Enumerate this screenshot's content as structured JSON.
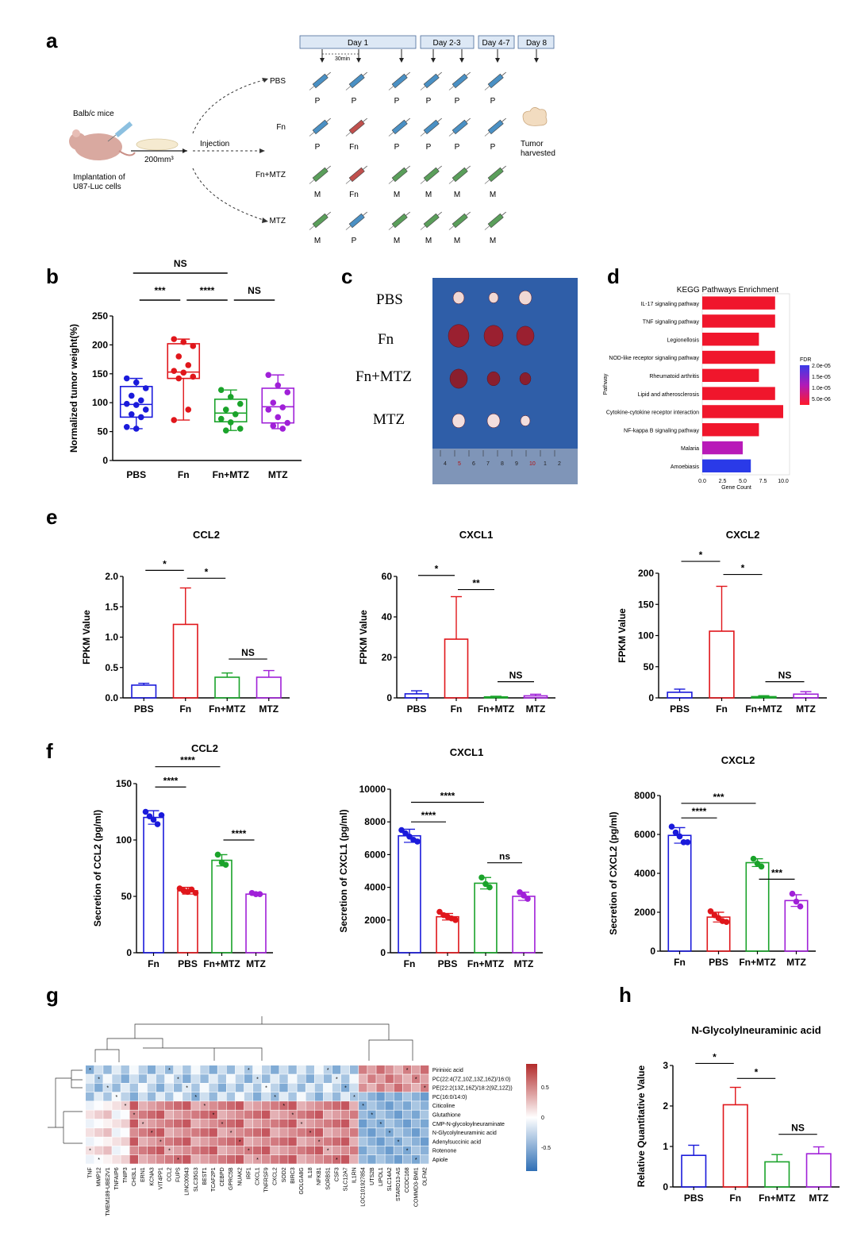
{
  "panel_labels": {
    "a": "a",
    "b": "b",
    "c": "c",
    "d": "d",
    "e": "e",
    "f": "f",
    "g": "g",
    "h": "h"
  },
  "panel_a": {
    "mouse_label": "Balb/c mice",
    "implant_line1": "Implantation of",
    "implant_line2": "U87-Luc cells",
    "volume": "200mm³",
    "injection": "Injection",
    "interval": "30min",
    "days": [
      "Day 1",
      "Day 2-3",
      "Day 4-7",
      "Day 8"
    ],
    "groups": [
      {
        "name": "PBS",
        "marks": [
          "P",
          "P",
          "P",
          "P",
          "P",
          "P"
        ],
        "colors": [
          "#4a90c4",
          "#4a90c4",
          "#4a90c4",
          "#4a90c4",
          "#4a90c4",
          "#4a90c4"
        ]
      },
      {
        "name": "Fn",
        "marks": [
          "P",
          "Fn",
          "P",
          "P",
          "P",
          "P"
        ],
        "colors": [
          "#4a90c4",
          "#c0504d",
          "#4a90c4",
          "#4a90c4",
          "#4a90c4",
          "#4a90c4"
        ]
      },
      {
        "name": "Fn+MTZ",
        "marks": [
          "M",
          "Fn",
          "M",
          "M",
          "M",
          "M"
        ],
        "colors": [
          "#5a9e5a",
          "#c0504d",
          "#5a9e5a",
          "#5a9e5a",
          "#5a9e5a",
          "#5a9e5a"
        ]
      },
      {
        "name": "MTZ",
        "marks": [
          "M",
          "P",
          "M",
          "M",
          "M",
          "M"
        ],
        "colors": [
          "#5a9e5a",
          "#4a90c4",
          "#5a9e5a",
          "#5a9e5a",
          "#5a9e5a",
          "#5a9e5a"
        ]
      }
    ],
    "tumor_line1": "Tumor",
    "tumor_line2": "harvested"
  },
  "panel_c": {
    "rows": [
      "PBS",
      "Fn",
      "Fn+MTZ",
      "MTZ"
    ],
    "ruler": [
      "4",
      "5",
      "6",
      "7",
      "8",
      "9",
      "10",
      "1",
      "2"
    ]
  },
  "chart_data": [
    {
      "id": "b",
      "type": "box",
      "title": "",
      "ylabel": "Normalized tumor weight(%)",
      "ylim": [
        0,
        250
      ],
      "yticks": [
        0,
        50,
        100,
        150,
        200,
        250
      ],
      "categories": [
        "PBS",
        "Fn",
        "Fn+MTZ",
        "MTZ"
      ],
      "colors": [
        "#1a1adb",
        "#e0161b",
        "#1aa32a",
        "#a020d8"
      ],
      "boxes": [
        {
          "min": 55,
          "q1": 75,
          "median": 97,
          "q3": 128,
          "max": 142,
          "points": [
            142,
            135,
            125,
            112,
            104,
            98,
            96,
            88,
            80,
            75,
            58,
            55
          ]
        },
        {
          "min": 70,
          "q1": 142,
          "median": 153,
          "q3": 202,
          "max": 210,
          "points": [
            210,
            205,
            198,
            180,
            165,
            155,
            152,
            145,
            142,
            88,
            70
          ]
        },
        {
          "min": 52,
          "q1": 67,
          "median": 82,
          "q3": 106,
          "max": 122,
          "points": [
            122,
            110,
            98,
            88,
            80,
            72,
            66,
            55,
            52
          ]
        },
        {
          "min": 55,
          "q1": 65,
          "median": 93,
          "q3": 125,
          "max": 148,
          "points": [
            148,
            130,
            118,
            100,
            92,
            88,
            75,
            65,
            60,
            55
          ]
        }
      ],
      "annotations": [
        {
          "from": 0,
          "to": 2,
          "label": "NS",
          "level": 3
        },
        {
          "from": 0,
          "to": 1,
          "label": "***",
          "level": 2
        },
        {
          "from": 1,
          "to": 2,
          "label": "****",
          "level": 2
        },
        {
          "from": 2,
          "to": 3,
          "label": "NS",
          "level": 2
        }
      ]
    },
    {
      "id": "d",
      "type": "bar",
      "title": "KEGG Pathways Enrichment",
      "xlabel": "Gene Count",
      "ylabel": "Pathway",
      "xlim": [
        0,
        10
      ],
      "xticks": [
        "0.0",
        "2.5",
        "5.0",
        "7.5",
        "10.0"
      ],
      "categories": [
        "IL-17 signaling pathway",
        "TNF signaling pathway",
        "Legionellosis",
        "NOD-like receptor signaling pathway",
        "Rheumatoid arthritis",
        "Lipid and atherosclerosis",
        "Cytokine-cytokine receptor interaction",
        "NF-kappa B signaling pathway",
        "Malaria",
        "Amoebiasis"
      ],
      "values": [
        9,
        9,
        7,
        9,
        7,
        9,
        10,
        7,
        5,
        6
      ],
      "colors": [
        "#f0162c",
        "#f0162c",
        "#f0162c",
        "#f0162c",
        "#f0162c",
        "#f0162c",
        "#f0162c",
        "#f0162c",
        "#b81ab8",
        "#2a3ae8"
      ],
      "legend_title": "FDR",
      "legend_ticks": [
        "2.0e-05",
        "1.5e-05",
        "1.0e-05",
        "5.0e-06"
      ]
    },
    {
      "id": "e1",
      "type": "bar",
      "style": "hollow",
      "title": "CCL2",
      "ylabel": "FPKM Value",
      "ylim": [
        0,
        2.0
      ],
      "yticks": [
        "0.0",
        "0.5",
        "1.0",
        "1.5",
        "2.0"
      ],
      "categories": [
        "PBS",
        "Fn",
        "Fn+MTZ",
        "MTZ"
      ],
      "values": [
        0.21,
        1.21,
        0.34,
        0.34
      ],
      "errors": [
        0.03,
        0.6,
        0.07,
        0.11
      ],
      "colors": [
        "#1a1adb",
        "#e0161b",
        "#1aa32a",
        "#a020d8"
      ],
      "annotations": [
        {
          "from": 0,
          "to": 1,
          "label": "*",
          "y": 2.1
        },
        {
          "from": 1,
          "to": 2,
          "label": "*",
          "y": 1.97
        },
        {
          "from": 2,
          "to": 3,
          "label": "NS",
          "y": 0.64
        }
      ]
    },
    {
      "id": "e2",
      "type": "bar",
      "style": "hollow",
      "title": "CXCL1",
      "ylabel": "FPKM Value",
      "ylim": [
        0,
        60
      ],
      "yticks": [
        "0",
        "20",
        "40",
        "60"
      ],
      "categories": [
        "PBS",
        "Fn",
        "Fn+MTZ",
        "MTZ"
      ],
      "values": [
        2,
        29,
        0.5,
        1
      ],
      "errors": [
        1.5,
        21,
        0.3,
        0.8
      ],
      "colors": [
        "#1a1adb",
        "#e0161b",
        "#1aa32a",
        "#a020d8"
      ],
      "annotations": [
        {
          "from": 0,
          "to": 1,
          "label": "*",
          "y": 60.5
        },
        {
          "from": 1,
          "to": 2,
          "label": "**",
          "y": 53.5
        },
        {
          "from": 2,
          "to": 3,
          "label": "NS",
          "y": 8
        }
      ]
    },
    {
      "id": "e3",
      "type": "bar",
      "style": "hollow",
      "title": "CXCL2",
      "ylabel": "FPKM Value",
      "ylim": [
        0,
        200
      ],
      "yticks": [
        "0",
        "50",
        "100",
        "150",
        "200"
      ],
      "categories": [
        "PBS",
        "Fn",
        "Fn+MTZ",
        "MTZ"
      ],
      "values": [
        9,
        107,
        2,
        6
      ],
      "errors": [
        5,
        72,
        1.5,
        4
      ],
      "colors": [
        "#1a1adb",
        "#e0161b",
        "#1aa32a",
        "#a020d8"
      ],
      "annotations": [
        {
          "from": 0,
          "to": 1,
          "label": "*",
          "y": 219
        },
        {
          "from": 1,
          "to": 2,
          "label": "*",
          "y": 198
        },
        {
          "from": 2,
          "to": 3,
          "label": "NS",
          "y": 26
        }
      ]
    },
    {
      "id": "f1",
      "type": "bar",
      "style": "hollow",
      "title": "CCL2",
      "ylabel": "Secretion of CCL2 (pg/ml)",
      "ylim": [
        0,
        150
      ],
      "yticks": [
        "0",
        "50",
        "100",
        "150"
      ],
      "categories": [
        "Fn",
        "PBS",
        "Fn+MTZ",
        "MTZ"
      ],
      "values": [
        120,
        55,
        82,
        52
      ],
      "errors": [
        6,
        3,
        5,
        1
      ],
      "points": [
        [
          125,
          121,
          118,
          114,
          122
        ],
        [
          57,
          55,
          54,
          56,
          53
        ],
        [
          87,
          80,
          78
        ],
        [
          53,
          52,
          52
        ]
      ],
      "colors": [
        "#1a1adb",
        "#e0161b",
        "#1aa32a",
        "#a020d8"
      ],
      "annotations": [
        {
          "from": 0,
          "to": 2,
          "label": "****",
          "y": 165
        },
        {
          "from": 0,
          "to": 1,
          "label": "****",
          "y": 147
        },
        {
          "from": 2,
          "to": 3,
          "label": "****",
          "y": 100
        }
      ]
    },
    {
      "id": "f2",
      "type": "bar",
      "style": "hollow",
      "title": "CXCL1",
      "ylabel": "Secretion of CXCL1 (pg/ml)",
      "ylim": [
        0,
        10000
      ],
      "yticks": [
        "0",
        "2000",
        "4000",
        "6000",
        "8000",
        "10000"
      ],
      "categories": [
        "Fn",
        "PBS",
        "Fn+MTZ",
        "MTZ"
      ],
      "values": [
        7150,
        2200,
        4250,
        3450
      ],
      "errors": [
        400,
        200,
        350,
        250
      ],
      "points": [
        [
          7500,
          7300,
          7100,
          6900,
          6800
        ],
        [
          2500,
          2300,
          2200,
          2100,
          2000
        ],
        [
          4600,
          4200,
          4000
        ],
        [
          3700,
          3500,
          3300
        ]
      ],
      "colors": [
        "#1a1adb",
        "#e0161b",
        "#1aa32a",
        "#a020d8"
      ],
      "annotations": [
        {
          "from": 0,
          "to": 2,
          "label": "****",
          "y": 9200
        },
        {
          "from": 0,
          "to": 1,
          "label": "****",
          "y": 8000
        },
        {
          "from": 2,
          "to": 3,
          "label": "ns",
          "y": 5500
        }
      ]
    },
    {
      "id": "f3",
      "type": "bar",
      "style": "hollow",
      "title": "CXCL2",
      "ylabel": "Secretion of CXCL2 (pg/ml)",
      "ylim": [
        0,
        8000
      ],
      "yticks": [
        "0",
        "2000",
        "4000",
        "6000",
        "8000"
      ],
      "categories": [
        "Fn",
        "PBS",
        "Fn+MTZ",
        "MTZ"
      ],
      "values": [
        5950,
        1750,
        4550,
        2600
      ],
      "errors": [
        400,
        250,
        200,
        300
      ],
      "points": [
        [
          6400,
          6100,
          5900,
          5600,
          5600
        ],
        [
          2050,
          1850,
          1700,
          1550,
          1500
        ],
        [
          4750,
          4500,
          4350
        ],
        [
          2950,
          2550,
          2300
        ]
      ],
      "colors": [
        "#1a1adb",
        "#e0161b",
        "#1aa32a",
        "#a020d8"
      ],
      "annotations": [
        {
          "from": 0,
          "to": 2,
          "label": "***",
          "y": 7600
        },
        {
          "from": 0,
          "to": 1,
          "label": "****",
          "y": 6850
        },
        {
          "from": 2,
          "to": 3,
          "label": "***",
          "y": 3700
        }
      ]
    },
    {
      "id": "g",
      "type": "heatmap",
      "rows": [
        "Pirinixic acid",
        "PC(22:4(7Z,10Z,13Z,16Z)/16:0)",
        "PE(22:2(13Z,16Z)/18:2(9Z,12Z))",
        "PC(16:0/14:0)",
        "Citicoline",
        "Glutathione",
        "CMP-N-glycoloylneuraminate",
        "N-Glycolylneuraminic acid",
        "Adenylsuccinic acid",
        "Rotenone",
        "Apiole"
      ],
      "columns": [
        "TNF",
        "MMP12",
        "TMEM189-UBE2V1",
        "TNFAIP6",
        "TNIP3",
        "CHI3L1",
        "ERN1",
        "KCNA3",
        "VIT4PP1",
        "CCL2",
        "FUPS",
        "LINC00943",
        "SLC35G3",
        "BEST1",
        "TCAF2P1",
        "CEBPD",
        "GPRC5B",
        "NUAK2",
        "IRF1",
        "CXCL1",
        "TNFRSF9",
        "CXCL2",
        "SOD2",
        "BIRC3",
        "GOLGA8G",
        "IL18",
        "NFKB1",
        "SORBS1",
        "CSF3",
        "SLC12A7",
        "IL1RN",
        "LOC101927854",
        "UTS2B",
        "LIPOL1",
        "SLC14A2",
        "STARD13-AS",
        "CCDC168",
        "COMMD3-BMI1",
        "OLFM2"
      ],
      "colorbar_ticks": [
        "0.5",
        "0",
        "-0.5"
      ]
    },
    {
      "id": "h",
      "type": "bar",
      "style": "hollow",
      "title": "N-Glycolylneuraminic acid",
      "ylabel": "Relative Quantitative Value",
      "ylim": [
        0,
        3
      ],
      "yticks": [
        "0",
        "1",
        "2",
        "3"
      ],
      "categories": [
        "PBS",
        "Fn",
        "Fn+MTZ",
        "MTZ"
      ],
      "values": [
        0.78,
        2.03,
        0.62,
        0.82
      ],
      "errors": [
        0.25,
        0.43,
        0.18,
        0.17
      ],
      "colors": [
        "#1a1adb",
        "#e0161b",
        "#1aa32a",
        "#a020d8"
      ],
      "annotations": [
        {
          "from": 0,
          "to": 1,
          "label": "*",
          "y": 3.05
        },
        {
          "from": 1,
          "to": 2,
          "label": "*",
          "y": 2.68
        },
        {
          "from": 2,
          "to": 3,
          "label": "NS",
          "y": 1.3
        }
      ]
    }
  ]
}
